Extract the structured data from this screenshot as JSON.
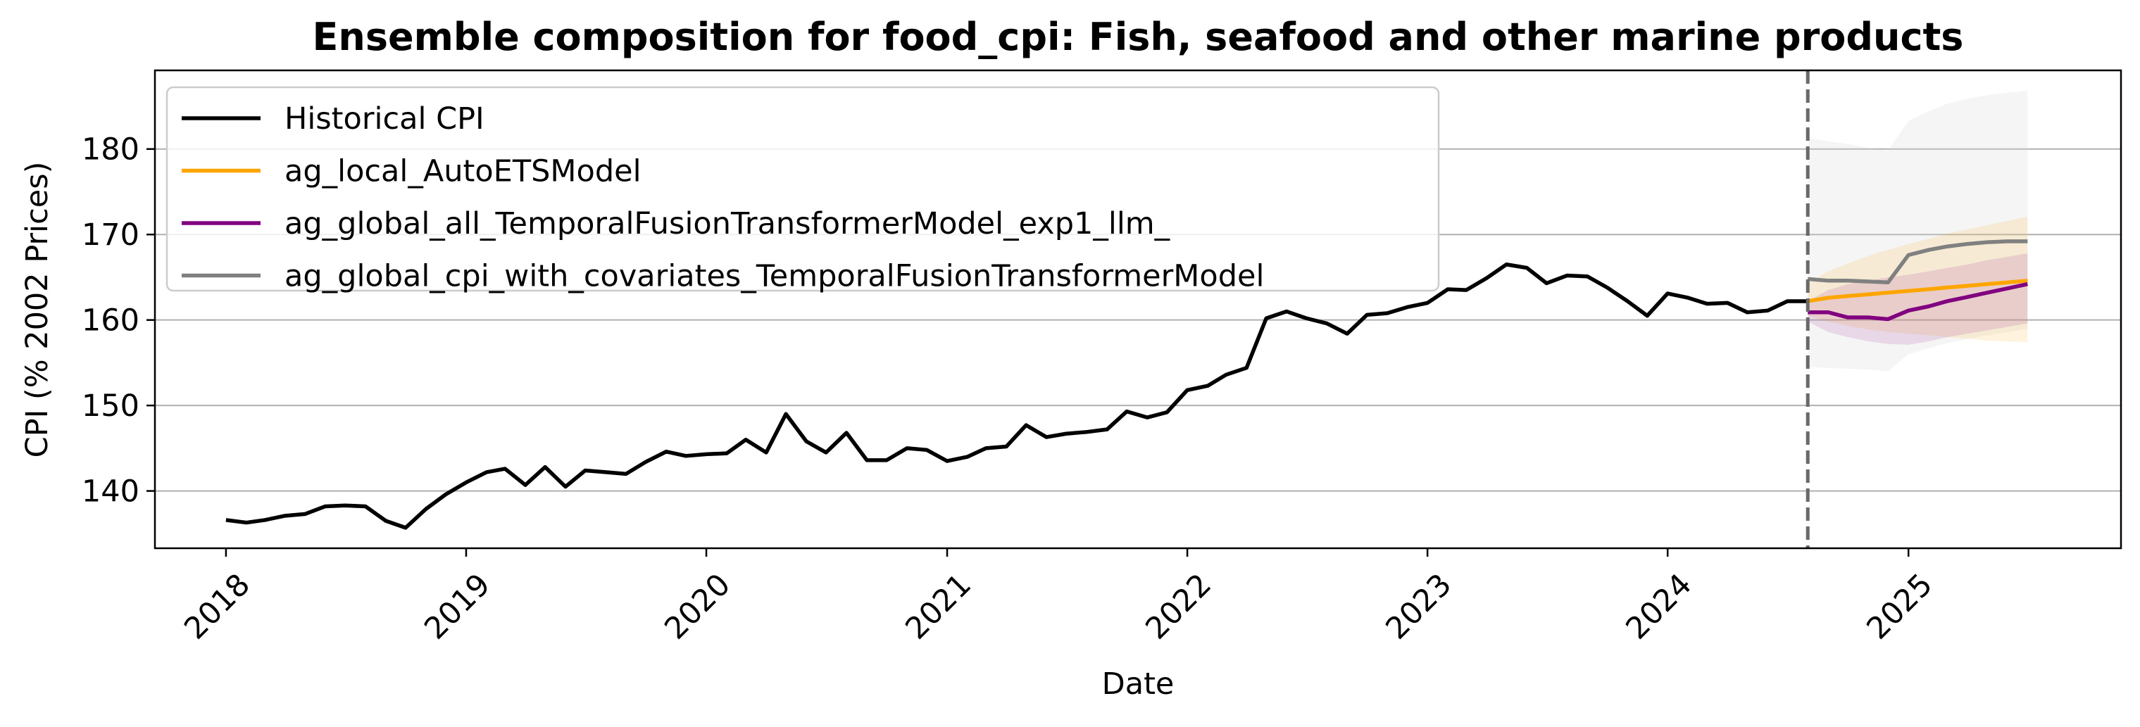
{
  "chart_data": {
    "type": "line",
    "title": "Ensemble composition for food_cpi: Fish, seafood and other marine products",
    "xlabel": "Date",
    "ylabel": "CPI (% 2002 Prices)",
    "x_ticks": [
      "2018",
      "2019",
      "2020",
      "2021",
      "2022",
      "2023",
      "2024",
      "2025"
    ],
    "y_ticks": [
      140,
      150,
      160,
      170,
      180
    ],
    "xlim": [
      "2017-09-15",
      "2025-11-20"
    ],
    "ylim": [
      133.3,
      189.2
    ],
    "grid": "horizontal",
    "legend_position": "top-left",
    "forecast_start": "2024-08",
    "series": [
      {
        "name": "Historical CPI",
        "color": "#000000",
        "x": [
          "2018-01",
          "2018-02",
          "2018-03",
          "2018-04",
          "2018-05",
          "2018-06",
          "2018-07",
          "2018-08",
          "2018-09",
          "2018-10",
          "2018-11",
          "2018-12",
          "2019-01",
          "2019-02",
          "2019-03",
          "2019-04",
          "2019-05",
          "2019-06",
          "2019-07",
          "2019-08",
          "2019-09",
          "2019-10",
          "2019-11",
          "2019-12",
          "2020-01",
          "2020-02",
          "2020-03",
          "2020-04",
          "2020-05",
          "2020-06",
          "2020-07",
          "2020-08",
          "2020-09",
          "2020-10",
          "2020-11",
          "2020-12",
          "2021-01",
          "2021-02",
          "2021-03",
          "2021-04",
          "2021-05",
          "2021-06",
          "2021-07",
          "2021-08",
          "2021-09",
          "2021-10",
          "2021-11",
          "2021-12",
          "2022-01",
          "2022-02",
          "2022-03",
          "2022-04",
          "2022-05",
          "2022-06",
          "2022-07",
          "2022-08",
          "2022-09",
          "2022-10",
          "2022-11",
          "2022-12",
          "2023-01",
          "2023-02",
          "2023-03",
          "2023-04",
          "2023-05",
          "2023-06",
          "2023-07",
          "2023-08",
          "2023-09",
          "2023-10",
          "2023-11",
          "2023-12",
          "2024-01",
          "2024-02",
          "2024-03",
          "2024-04",
          "2024-05",
          "2024-06",
          "2024-07",
          "2024-08"
        ],
        "values": [
          136.6,
          136.3,
          136.6,
          137.1,
          137.3,
          138.2,
          138.3,
          138.2,
          136.5,
          135.7,
          137.9,
          139.6,
          141.0,
          142.2,
          142.6,
          140.7,
          142.8,
          140.5,
          142.4,
          142.2,
          142.0,
          143.4,
          144.6,
          144.1,
          144.3,
          144.4,
          146.0,
          144.5,
          149.0,
          145.8,
          144.5,
          146.8,
          143.6,
          143.6,
          145.0,
          144.8,
          143.5,
          144.0,
          145.0,
          145.2,
          147.7,
          146.3,
          146.7,
          146.9,
          147.2,
          149.3,
          148.6,
          149.2,
          151.8,
          152.3,
          153.6,
          154.4,
          160.2,
          161.0,
          160.2,
          159.6,
          158.4,
          160.6,
          160.8,
          161.5,
          162.0,
          163.6,
          163.5,
          164.9,
          166.5,
          166.1,
          164.3,
          165.2,
          165.1,
          163.8,
          162.2,
          160.5,
          163.1,
          162.6,
          161.9,
          162.0,
          160.9,
          161.1,
          162.2,
          162.2
        ]
      },
      {
        "name": "ag_local_AutoETSModel",
        "color": "#ffa500",
        "x": [
          "2024-08",
          "2024-09",
          "2024-10",
          "2024-11",
          "2024-12",
          "2025-01",
          "2025-02",
          "2025-03",
          "2025-04",
          "2025-05",
          "2025-06",
          "2025-07"
        ],
        "values": [
          162.2,
          162.6,
          162.8,
          163.0,
          163.2,
          163.4,
          163.6,
          163.8,
          164.0,
          164.2,
          164.4,
          164.6
        ],
        "band_lower": [
          160.5,
          159.8,
          159.3,
          158.9,
          158.6,
          158.4,
          158.2,
          158.0,
          157.8,
          157.6,
          157.5,
          157.4
        ],
        "band_upper": [
          164.3,
          165.7,
          166.6,
          167.5,
          168.2,
          168.9,
          169.5,
          170.1,
          170.6,
          171.1,
          171.6,
          172.1
        ]
      },
      {
        "name": "ag_global_all_TemporalFusionTransformerModel_exp1_llm_",
        "color": "#800080",
        "x": [
          "2024-08",
          "2024-09",
          "2024-10",
          "2024-11",
          "2024-12",
          "2025-01",
          "2025-02",
          "2025-03",
          "2025-04",
          "2025-05",
          "2025-06",
          "2025-07"
        ],
        "values": [
          160.9,
          160.9,
          160.3,
          160.3,
          160.1,
          161.1,
          161.6,
          162.2,
          162.7,
          163.2,
          163.7,
          164.2
        ],
        "band_lower": [
          159.8,
          158.6,
          158.0,
          157.5,
          157.2,
          157.1,
          157.5,
          158.0,
          158.4,
          158.8,
          159.2,
          159.6
        ],
        "band_upper": [
          162.2,
          163.5,
          164.2,
          164.6,
          165.0,
          165.3,
          165.7,
          166.1,
          166.5,
          167.0,
          167.4,
          167.8
        ]
      },
      {
        "name": "ag_global_cpi_with_covariates_TemporalFusionTransformerModel",
        "color": "#808080",
        "x": [
          "2024-08",
          "2024-09",
          "2024-10",
          "2024-11",
          "2024-12",
          "2025-01",
          "2025-02",
          "2025-03",
          "2025-04",
          "2025-05",
          "2025-06",
          "2025-07"
        ],
        "values": [
          164.8,
          164.6,
          164.6,
          164.5,
          164.4,
          167.6,
          168.2,
          168.6,
          168.9,
          169.1,
          169.2,
          169.2
        ],
        "band_lower": [
          154.5,
          154.4,
          154.3,
          154.2,
          154.0,
          156.0,
          156.7,
          157.3,
          157.8,
          158.2,
          158.6,
          159.0
        ],
        "band_upper": [
          181.3,
          180.9,
          180.6,
          180.1,
          179.8,
          183.3,
          184.4,
          185.3,
          185.9,
          186.3,
          186.6,
          186.8
        ]
      }
    ]
  }
}
